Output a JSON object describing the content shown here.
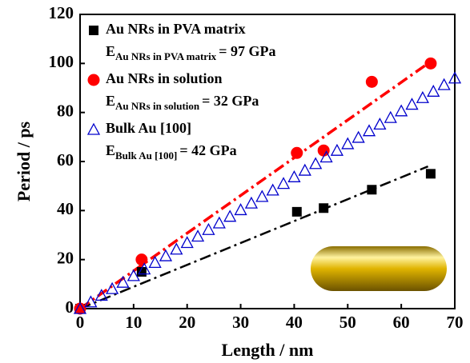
{
  "chart_data": {
    "type": "scatter",
    "x_label": "Length / nm",
    "y_label": "Period / ps",
    "xlim": [
      0,
      70
    ],
    "ylim": [
      0,
      120
    ],
    "xticks": [
      0,
      10,
      20,
      30,
      40,
      50,
      60,
      70
    ],
    "yticks": [
      0,
      20,
      40,
      60,
      80,
      100,
      120
    ],
    "series": [
      {
        "name": "Au NRs in PVA matrix",
        "color": "#000000",
        "marker": "square",
        "x": [
          0,
          11.5,
          40.5,
          45.5,
          54.5,
          65.5
        ],
        "values": [
          0,
          15,
          39.5,
          41,
          48.5,
          55
        ]
      },
      {
        "name": "Au NRs in solution",
        "color": "#ff0000",
        "marker": "circle",
        "x": [
          0,
          11.5,
          40.5,
          45.5,
          54.5,
          65.5
        ],
        "values": [
          0,
          20,
          63.5,
          64.5,
          92.5,
          100
        ]
      },
      {
        "name": "Bulk Au [100]",
        "color": "#0000cc",
        "marker": "triangle",
        "x": [
          0,
          2,
          4,
          6,
          8,
          10,
          12,
          14,
          16,
          18,
          20,
          22,
          24,
          26,
          28,
          30,
          32,
          34,
          36,
          38,
          40,
          42,
          44,
          46,
          48,
          50,
          52,
          54,
          56,
          58,
          60,
          62,
          64,
          66,
          68,
          70
        ],
        "values": [
          0,
          2.7,
          5.4,
          8.1,
          10.7,
          13.4,
          16.1,
          18.8,
          21.5,
          24.2,
          26.9,
          29.5,
          32.2,
          34.9,
          37.6,
          40.3,
          43.0,
          45.7,
          48.3,
          51.0,
          53.7,
          56.4,
          59.1,
          61.8,
          64.5,
          67.2,
          69.8,
          72.5,
          75.2,
          77.9,
          80.6,
          83.3,
          86.0,
          88.6,
          91.3,
          94.0
        ]
      }
    ],
    "fit_lines": [
      {
        "color": "#000000",
        "x": [
          0,
          65
        ],
        "values": [
          0,
          58
        ]
      },
      {
        "color": "#ff0000",
        "x": [
          0,
          65
        ],
        "values": [
          0,
          100
        ]
      }
    ],
    "modulus_labels": [
      {
        "symbol": "E",
        "sub": "Au NRs in PVA matrix",
        "rest": "= 97 GPa"
      },
      {
        "symbol": "E",
        "sub": "Au NRs in solution",
        "rest": "= 32 GPa"
      },
      {
        "symbol": "E",
        "sub": "Bulk Au [100]",
        "rest": "= 42 GPa"
      }
    ]
  }
}
